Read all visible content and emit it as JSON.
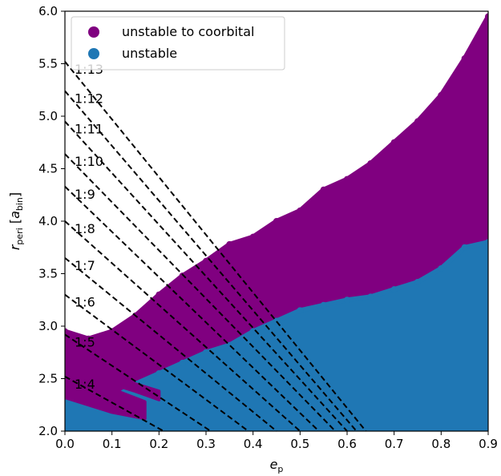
{
  "chart_data": {
    "type": "scatter",
    "xlabel": {
      "main": "e",
      "sub": "p"
    },
    "ylabel": {
      "main": "r",
      "sub": "peri",
      "bracket_open": " [",
      "unit_main": "a",
      "unit_sub": "bin",
      "bracket_close": "]"
    },
    "xlim": [
      0.0,
      0.9
    ],
    "ylim": [
      2.0,
      6.0
    ],
    "xticks": [
      "0.0",
      "0.1",
      "0.2",
      "0.3",
      "0.4",
      "0.5",
      "0.6",
      "0.7",
      "0.8",
      "0.9"
    ],
    "yticks": [
      "2.0",
      "2.5",
      "3.0",
      "3.5",
      "4.0",
      "4.5",
      "5.0",
      "5.5",
      "6.0"
    ],
    "grid": false,
    "legend_position": "top-left",
    "series": [
      {
        "name": "unstable to coorbital",
        "color": "#800080",
        "region_upper": {
          "x": [
            0.0,
            0.05,
            0.1,
            0.15,
            0.2,
            0.25,
            0.3,
            0.35,
            0.4,
            0.45,
            0.5,
            0.55,
            0.6,
            0.65,
            0.7,
            0.75,
            0.8,
            0.85,
            0.9
          ],
          "y": [
            2.95,
            2.88,
            2.95,
            3.1,
            3.3,
            3.48,
            3.62,
            3.78,
            3.85,
            4.0,
            4.1,
            4.3,
            4.4,
            4.55,
            4.75,
            4.95,
            5.2,
            5.55,
            5.95
          ]
        },
        "bands": [
          {
            "x": [
              0.0,
              0.05,
              0.1,
              0.17
            ],
            "y_top": [
              2.58,
              2.5,
              2.4,
              2.28
            ],
            "y_bottom": [
              2.32,
              2.25,
              2.18,
              2.12
            ]
          },
          {
            "x": [
              0.0,
              0.05,
              0.1,
              0.15,
              0.2
            ],
            "y_top": [
              2.68,
              2.62,
              2.55,
              2.45,
              2.38
            ],
            "y_bottom": [
              2.6,
              2.52,
              2.45,
              2.38,
              2.3
            ]
          }
        ]
      },
      {
        "name": "unstable",
        "color": "#1f77b4",
        "region_upper": {
          "x": [
            0.0,
            0.05,
            0.1,
            0.15,
            0.2,
            0.25,
            0.3,
            0.35,
            0.4,
            0.45,
            0.5,
            0.55,
            0.6,
            0.65,
            0.7,
            0.75,
            0.8,
            0.85,
            0.9
          ],
          "y": [
            2.3,
            2.27,
            2.3,
            2.45,
            2.55,
            2.65,
            2.75,
            2.82,
            2.95,
            3.05,
            3.15,
            3.2,
            3.25,
            3.28,
            3.35,
            3.42,
            3.55,
            3.75,
            3.8
          ]
        }
      }
    ],
    "resonance_lines": [
      {
        "label": "1:4",
        "y0": 2.52,
        "x_end": 0.21
      },
      {
        "label": "1:5",
        "y0": 2.92,
        "x_end": 0.31
      },
      {
        "label": "1:6",
        "y0": 3.3,
        "x_end": 0.39
      },
      {
        "label": "1:7",
        "y0": 3.65,
        "x_end": 0.45
      },
      {
        "label": "1:8",
        "y0": 4.0,
        "x_end": 0.5
      },
      {
        "label": "1:9",
        "y0": 4.33,
        "x_end": 0.54
      },
      {
        "label": "1:10",
        "y0": 4.64,
        "x_end": 0.575
      },
      {
        "label": "1:11",
        "y0": 4.95,
        "x_end": 0.6
      },
      {
        "label": "1:12",
        "y0": 5.24,
        "x_end": 0.62
      },
      {
        "label": "1:13",
        "y0": 5.52,
        "x_end": 0.64
      }
    ]
  }
}
